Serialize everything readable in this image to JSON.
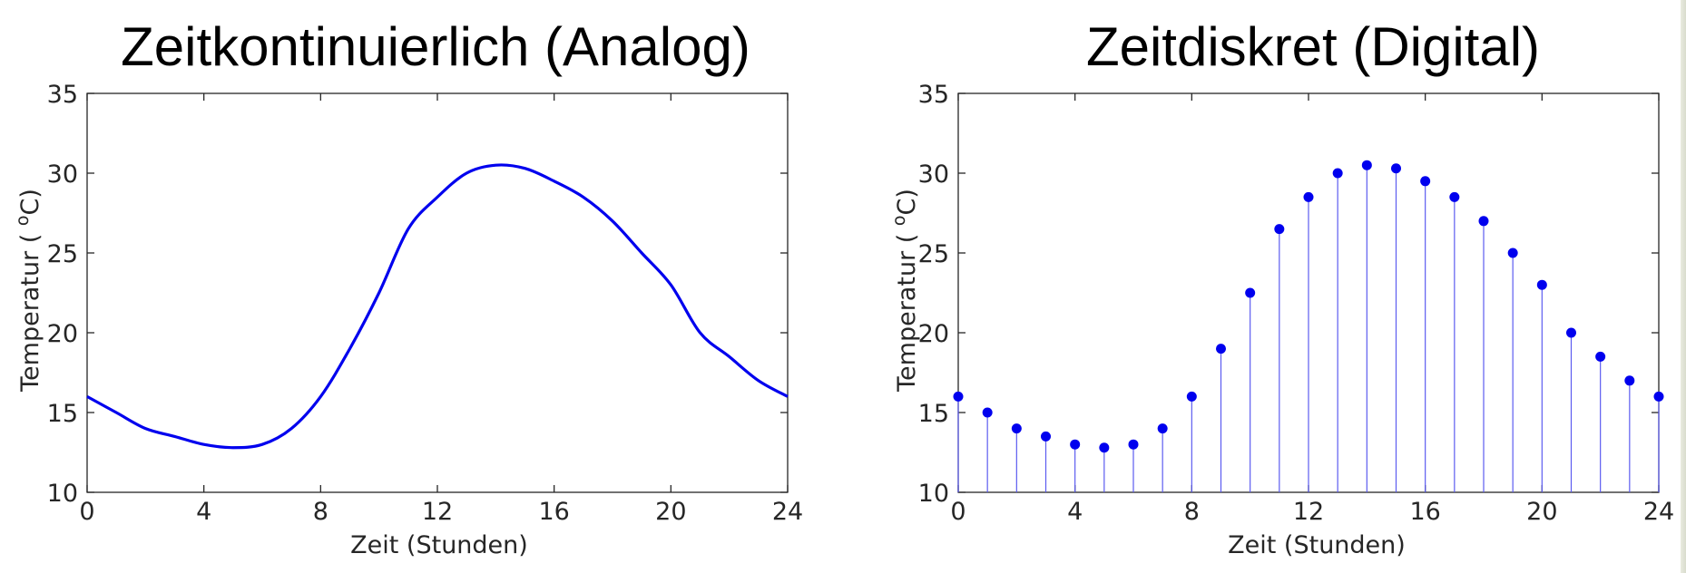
{
  "chart_data": [
    {
      "type": "line",
      "title": "Zeitkontinuierlich (Analog)",
      "xlabel": "Zeit (Stunden)",
      "ylabel_text": "Temperatur ( ",
      "ylabel_sup": "o",
      "ylabel_unit": "C)",
      "xlim": [
        0,
        24
      ],
      "ylim": [
        10,
        35
      ],
      "xticks": [
        0,
        4,
        8,
        12,
        16,
        20,
        24
      ],
      "yticks": [
        10,
        15,
        20,
        25,
        30,
        35
      ],
      "grid": false,
      "color": "#0000ee",
      "series": [
        {
          "x": [
            0,
            1,
            2,
            3,
            4,
            5,
            6,
            7,
            8,
            9,
            10,
            11,
            12,
            13,
            14,
            15,
            16,
            17,
            18,
            19,
            20,
            21,
            22,
            23,
            24
          ],
          "values": [
            16,
            15,
            14,
            13.5,
            13,
            12.8,
            13,
            14,
            16,
            19,
            22.5,
            26.5,
            28.5,
            30,
            30.5,
            30.3,
            29.5,
            28.5,
            27,
            25,
            23,
            20,
            18.5,
            17,
            16
          ]
        }
      ]
    },
    {
      "type": "scatter",
      "title": "Zeitdiskret (Digital)",
      "xlabel": "Zeit (Stunden)",
      "ylabel_text": "Temperatur ( ",
      "ylabel_sup": "o",
      "ylabel_unit": "C)",
      "xlim": [
        0,
        24
      ],
      "ylim": [
        10,
        35
      ],
      "xticks": [
        0,
        4,
        8,
        12,
        16,
        20,
        24
      ],
      "yticks": [
        10,
        15,
        20,
        25,
        30,
        35
      ],
      "grid": false,
      "color": "#0000ee",
      "stem": true,
      "series": [
        {
          "x": [
            0,
            1,
            2,
            3,
            4,
            5,
            6,
            7,
            8,
            9,
            10,
            11,
            12,
            13,
            14,
            15,
            16,
            17,
            18,
            19,
            20,
            21,
            22,
            23,
            24
          ],
          "values": [
            16,
            15,
            14,
            13.5,
            13,
            12.8,
            13,
            14,
            16,
            19,
            22.5,
            26.5,
            28.5,
            30,
            30.5,
            30.3,
            29.5,
            28.5,
            27,
            25,
            23,
            20,
            18.5,
            17,
            16
          ]
        }
      ]
    }
  ]
}
